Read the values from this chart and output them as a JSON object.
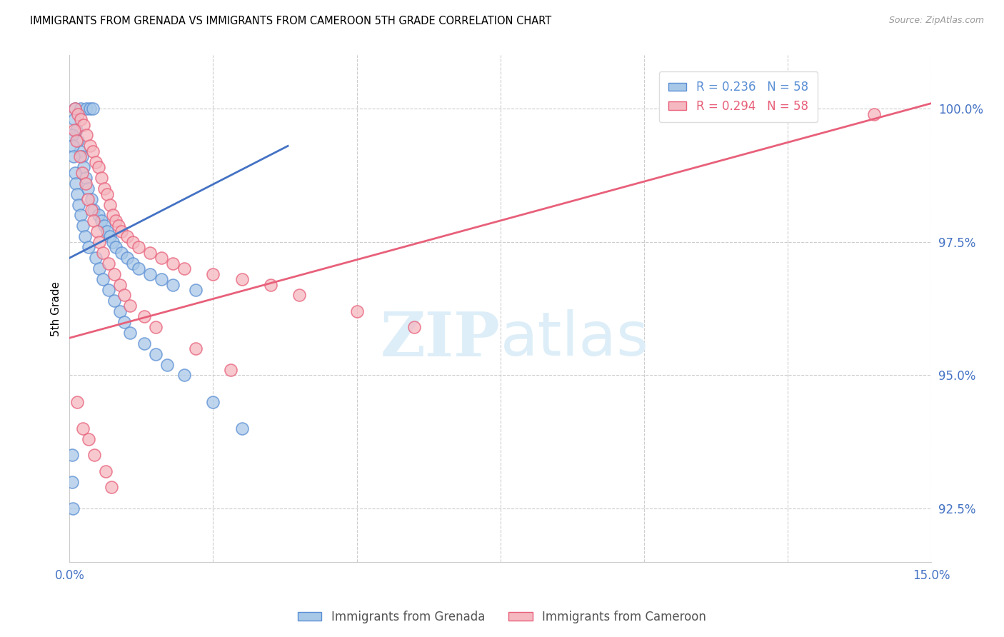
{
  "title": "IMMIGRANTS FROM GRENADA VS IMMIGRANTS FROM CAMEROON 5TH GRADE CORRELATION CHART",
  "source": "Source: ZipAtlas.com",
  "ylabel": "5th Grade",
  "xmin": 0.0,
  "xmax": 15.0,
  "ymin": 91.5,
  "ymax": 101.0,
  "yticks": [
    92.5,
    95.0,
    97.5,
    100.0
  ],
  "ytick_labels": [
    "92.5%",
    "95.0%",
    "97.5%",
    "100.0%"
  ],
  "xticks": [
    0.0,
    2.5,
    5.0,
    7.5,
    10.0,
    12.5,
    15.0
  ],
  "xtick_labels": [
    "0.0%",
    "",
    "",
    "",
    "",
    "",
    "15.0%"
  ],
  "legend_r1": "R = 0.236   N = 58",
  "legend_r2": "R = 0.294   N = 58",
  "grenada_color": "#a8c8e8",
  "cameroon_color": "#f5b8c0",
  "grenada_edge_color": "#5b8fd4",
  "cameroon_edge_color": "#e8607a",
  "grenada_line_color": "#4472c4",
  "cameroon_line_color": "#e8607a",
  "tick_label_color": "#4472c4",
  "watermark_color": "#ddeef8",
  "grenada_x": [
    0.1,
    0.2,
    0.3,
    0.35,
    0.4,
    0.08,
    0.12,
    0.15,
    0.18,
    0.22,
    0.25,
    0.28,
    0.32,
    0.38,
    0.42,
    0.5,
    0.55,
    0.6,
    0.65,
    0.7,
    0.75,
    0.8,
    0.9,
    1.0,
    1.1,
    1.2,
    1.4,
    1.6,
    1.8,
    2.2,
    0.05,
    0.06,
    0.07,
    0.09,
    0.11,
    0.13,
    0.16,
    0.19,
    0.23,
    0.27,
    0.33,
    0.45,
    0.52,
    0.58,
    0.68,
    0.78,
    0.88,
    0.95,
    1.05,
    1.3,
    1.5,
    1.7,
    2.0,
    2.5,
    3.0,
    0.04,
    0.05,
    0.06
  ],
  "grenada_y": [
    100.0,
    100.0,
    100.0,
    100.0,
    100.0,
    99.8,
    99.6,
    99.4,
    99.2,
    99.1,
    98.9,
    98.7,
    98.5,
    98.3,
    98.1,
    98.0,
    97.9,
    97.8,
    97.7,
    97.6,
    97.5,
    97.4,
    97.3,
    97.2,
    97.1,
    97.0,
    96.9,
    96.8,
    96.7,
    96.6,
    99.5,
    99.3,
    99.1,
    98.8,
    98.6,
    98.4,
    98.2,
    98.0,
    97.8,
    97.6,
    97.4,
    97.2,
    97.0,
    96.8,
    96.6,
    96.4,
    96.2,
    96.0,
    95.8,
    95.6,
    95.4,
    95.2,
    95.0,
    94.5,
    94.0,
    93.5,
    93.0,
    92.5
  ],
  "cameroon_x": [
    0.1,
    0.15,
    0.2,
    0.25,
    0.3,
    0.35,
    0.4,
    0.45,
    0.5,
    0.55,
    0.6,
    0.65,
    0.7,
    0.75,
    0.8,
    0.85,
    0.9,
    1.0,
    1.1,
    1.2,
    1.4,
    1.6,
    1.8,
    2.0,
    2.5,
    3.0,
    3.5,
    4.0,
    5.0,
    6.0,
    0.08,
    0.12,
    0.18,
    0.22,
    0.28,
    0.32,
    0.38,
    0.42,
    0.48,
    0.52,
    0.58,
    0.68,
    0.78,
    0.88,
    0.95,
    1.05,
    1.3,
    1.5,
    2.2,
    2.8,
    0.13,
    0.23,
    0.33,
    0.43,
    0.63,
    0.73,
    12.5,
    14.0
  ],
  "cameroon_y": [
    100.0,
    99.9,
    99.8,
    99.7,
    99.5,
    99.3,
    99.2,
    99.0,
    98.9,
    98.7,
    98.5,
    98.4,
    98.2,
    98.0,
    97.9,
    97.8,
    97.7,
    97.6,
    97.5,
    97.4,
    97.3,
    97.2,
    97.1,
    97.0,
    96.9,
    96.8,
    96.7,
    96.5,
    96.2,
    95.9,
    99.6,
    99.4,
    99.1,
    98.8,
    98.6,
    98.3,
    98.1,
    97.9,
    97.7,
    97.5,
    97.3,
    97.1,
    96.9,
    96.7,
    96.5,
    96.3,
    96.1,
    95.9,
    95.5,
    95.1,
    94.5,
    94.0,
    93.8,
    93.5,
    93.2,
    92.9,
    100.0,
    99.9
  ],
  "grenada_line_x": [
    0.0,
    3.8
  ],
  "grenada_line_y": [
    97.2,
    99.3
  ],
  "cameroon_line_x": [
    0.0,
    15.0
  ],
  "cameroon_line_y": [
    95.7,
    100.1
  ]
}
